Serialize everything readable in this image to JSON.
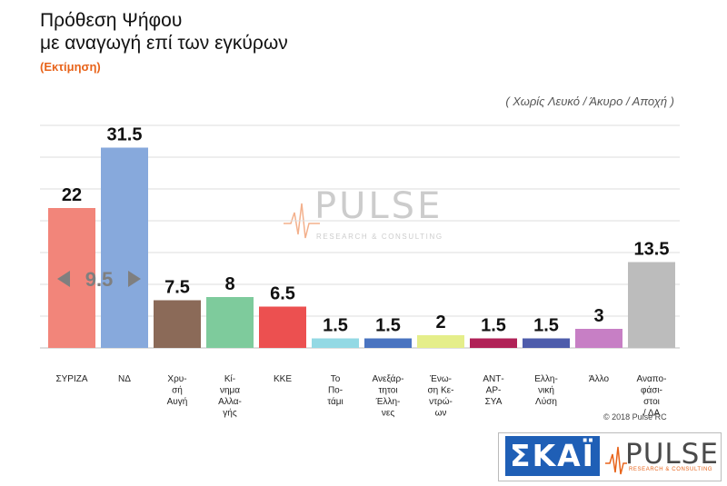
{
  "header": {
    "title_line1": "Πρόθεση Ψήφου",
    "title_line2": "με αναγωγή επί των εγκύρων",
    "subtitle": "(Εκτίμηση)",
    "note": "( Χωρίς Λευκό / Άκυρο / Αποχή )"
  },
  "watermark": {
    "word": "PULSE",
    "tagline": "RESEARCH & CONSULTING"
  },
  "footer": {
    "copyright": "© 2018 Pulse RC"
  },
  "brands": {
    "skai": "ΣΚΑΪ",
    "pulse": "PULSE",
    "pulse_tagline": "RESEARCH & CONSULTING"
  },
  "chart_data": {
    "type": "bar",
    "title": "Πρόθεση Ψήφου με αναγωγή επί των εγκύρων",
    "subtitle": "(Εκτίμηση)",
    "ylim": [
      0,
      35
    ],
    "categories": [
      [
        "ΣΥΡΙΖΑ"
      ],
      [
        "ΝΔ"
      ],
      [
        "Χρυ-",
        "σή",
        "Αυγή"
      ],
      [
        "Κί-",
        "νημα",
        "Αλλα-",
        "γής"
      ],
      [
        "ΚΚΕ"
      ],
      [
        "Το",
        "Πο-",
        "τάμι"
      ],
      [
        "Ανεξάρ-",
        "τητοι",
        "Έλλη-",
        "νες"
      ],
      [
        "Ένω-",
        "ση Κε-",
        "ντρώ-",
        "ων"
      ],
      [
        "ΑΝΤ-",
        "ΑΡ-",
        "ΣΥΑ"
      ],
      [
        "Ελλη-",
        "νική",
        "Λύση"
      ],
      [
        "Άλλο"
      ],
      [
        "Αναπο-",
        "φάσι-",
        "στοι",
        "/ ΔΑ"
      ]
    ],
    "values": [
      22,
      31.5,
      7.5,
      8,
      6.5,
      1.5,
      1.5,
      2,
      1.5,
      1.5,
      3,
      13.5
    ],
    "value_labels": [
      "22",
      "31.5",
      "7.5",
      "8",
      "6.5",
      "1.5",
      "1.5",
      "2",
      "1.5",
      "1.5",
      "3",
      "13.5"
    ],
    "colors": [
      "#f2857a",
      "#87a9dc",
      "#8b6a58",
      "#7ecb9c",
      "#ec5050",
      "#93d9e4",
      "#4a74c0",
      "#e5ee8a",
      "#b02257",
      "#4e5cab",
      "#c77fc5",
      "#bcbcbc"
    ],
    "annotation": {
      "text": "9.5",
      "between": [
        "ΣΥΡΙΖΑ",
        "ΝΔ"
      ]
    },
    "grid": true
  }
}
